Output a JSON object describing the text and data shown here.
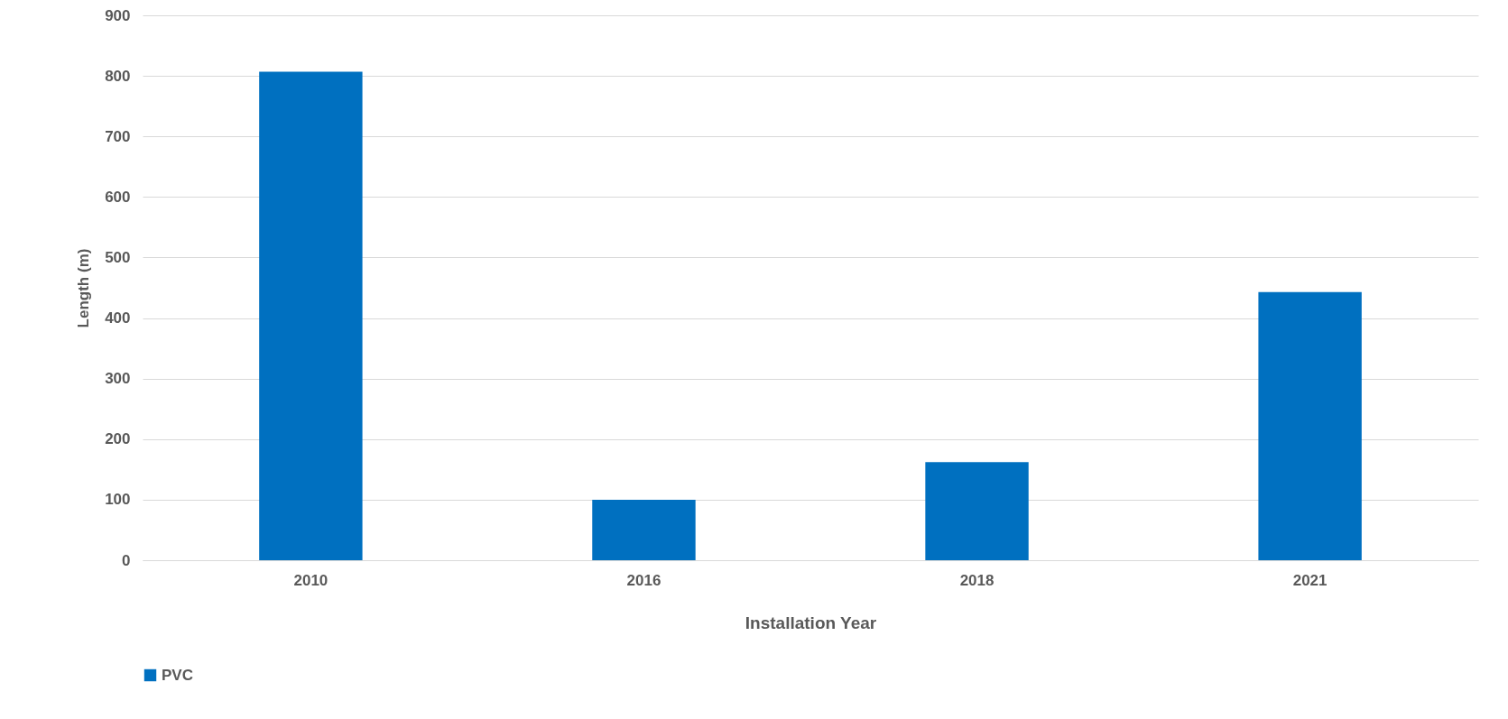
{
  "chart_data": {
    "type": "bar",
    "xlabel": "Installation Year",
    "ylabel": "Length (m)",
    "categories": [
      "2010",
      "2016",
      "2018",
      "2021"
    ],
    "series": [
      {
        "name": "PVC",
        "color": "#0070c0",
        "values": [
          807,
          100,
          162,
          443
        ]
      }
    ],
    "ylim": [
      0,
      900
    ],
    "yticks": [
      0,
      100,
      200,
      300,
      400,
      500,
      600,
      700,
      800,
      900
    ],
    "grid": "y",
    "legend": "bottom"
  }
}
